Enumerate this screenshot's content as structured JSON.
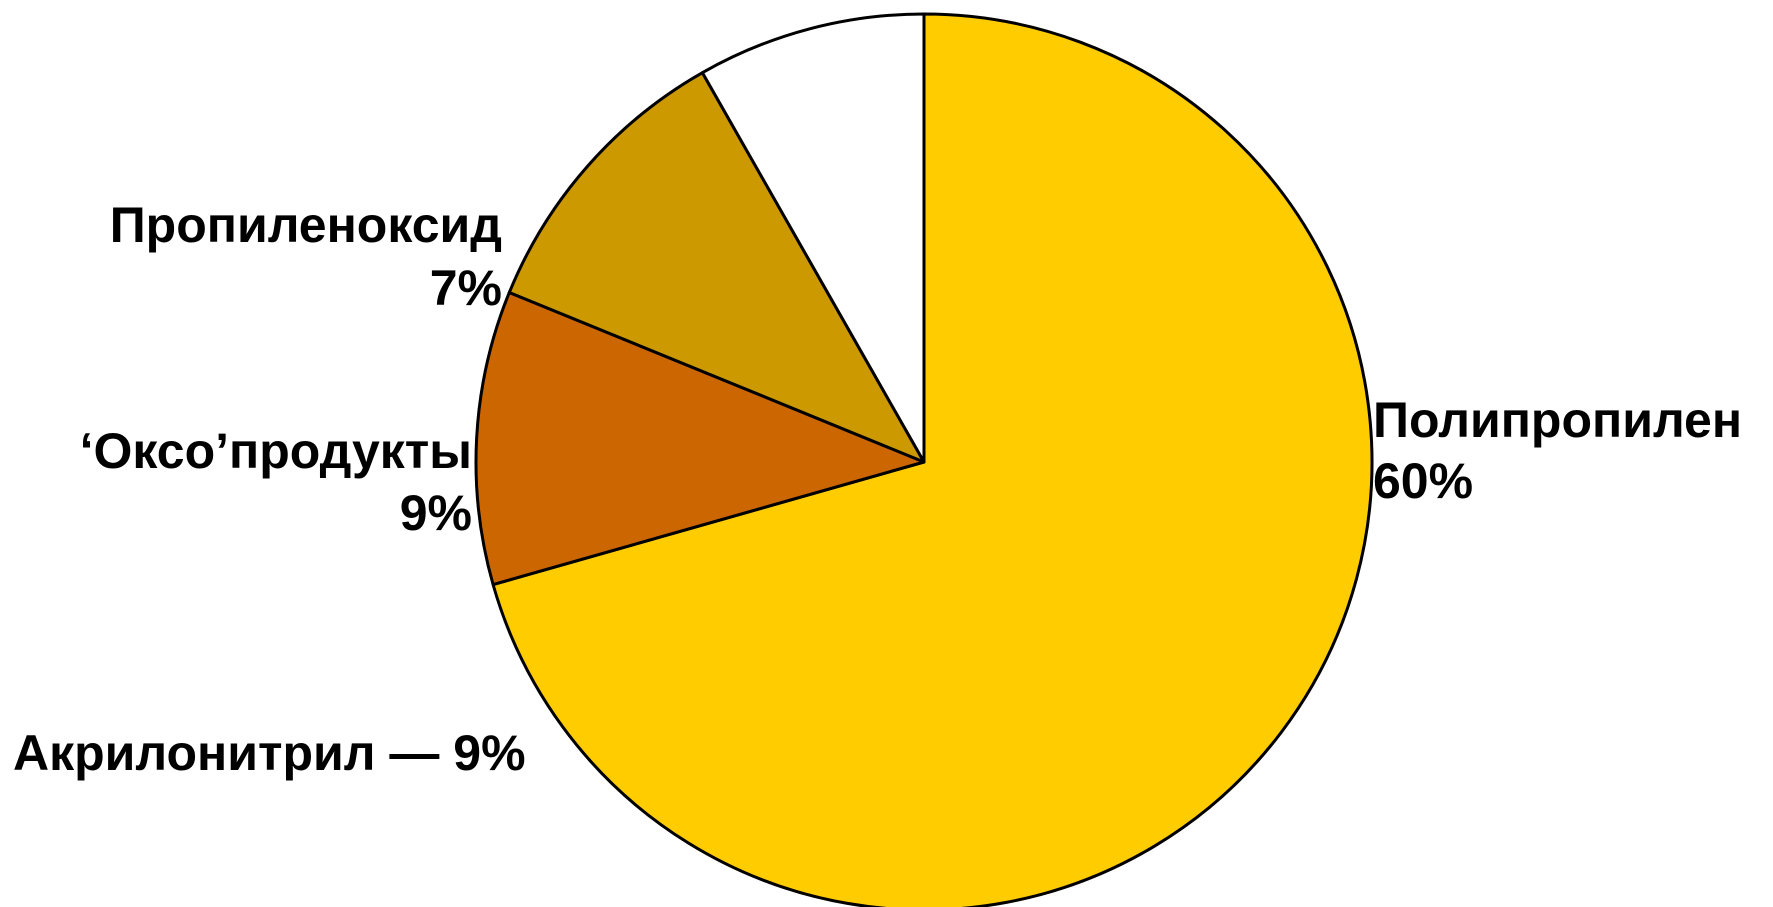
{
  "chart_data": {
    "type": "pie",
    "title": "",
    "start_angle_deg": 0,
    "direction": "clockwise",
    "slices": [
      {
        "name": "Полипропилен",
        "value": 60,
        "value_label": "60%",
        "color": "#FFCC00"
      },
      {
        "name": "Акрилонитрил",
        "value": 9,
        "value_label": "9%",
        "color": "#CC6600"
      },
      {
        "name": "‘Оксо’продукты",
        "value": 9,
        "value_label": "9%",
        "color": "#CC9900"
      },
      {
        "name": "Пропиленоксид",
        "value": 7,
        "value_label": "7%",
        "color": "#FFFFFF"
      }
    ],
    "labels": {
      "polypropylene_name": "Полипропилен",
      "polypropylene_value": "60%",
      "acrylonitrile": "Акрилонитрил — 9%",
      "oxo_name": "‘Оксо’продукты",
      "oxo_value": "9%",
      "propylene_oxide_name": "Пропиленоксид",
      "propylene_oxide_value": "7%"
    },
    "legend": "none",
    "edge_color": "#000000"
  }
}
